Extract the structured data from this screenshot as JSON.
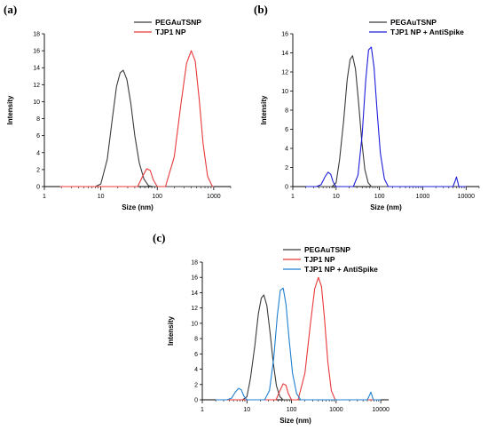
{
  "chart_data": [
    {
      "type": "line",
      "panel": "(a)",
      "xlabel": "Size (nm)",
      "ylabel": "Intensity",
      "xscale": "log",
      "xlim": [
        1,
        2000
      ],
      "ylim": [
        0,
        18
      ],
      "x_ticks": [
        1,
        10,
        100,
        1000
      ],
      "x_tick_labels": [
        "1",
        "10",
        "100",
        "1000"
      ],
      "y_ticks": [
        0,
        2,
        4,
        6,
        8,
        10,
        12,
        14,
        16,
        18
      ],
      "legend_position": "top-right",
      "series": [
        {
          "name": "PEGAuTSNP",
          "color": "#3a3a3a",
          "x": [
            1.9,
            5,
            8,
            10,
            13,
            16,
            19,
            22,
            25,
            29,
            34,
            40,
            48,
            58,
            70,
            85,
            110,
            1000
          ],
          "y": [
            0,
            0,
            0,
            0.3,
            3.2,
            8.0,
            11.8,
            13.4,
            13.7,
            12.6,
            9.8,
            6.0,
            2.8,
            0.9,
            0.1,
            0,
            0,
            0
          ]
        },
        {
          "name": "TJP1 NP",
          "color": "#e8383a",
          "x": [
            1.9,
            30,
            45,
            55,
            65,
            75,
            85,
            100,
            140,
            200,
            260,
            330,
            400,
            470,
            550,
            650,
            780,
            950,
            1000
          ],
          "y": [
            0,
            0,
            0,
            1.2,
            2.1,
            1.9,
            0.8,
            0,
            0,
            3.5,
            9.5,
            14.5,
            16.0,
            14.8,
            10.5,
            5.0,
            1.2,
            0,
            0
          ]
        }
      ]
    },
    {
      "type": "line",
      "panel": "(b)",
      "xlabel": "Size (nm)",
      "ylabel": "Intensity",
      "xscale": "log",
      "xlim": [
        1,
        20000
      ],
      "ylim": [
        0,
        16
      ],
      "x_ticks": [
        1,
        10,
        100,
        1000,
        10000
      ],
      "x_tick_labels": [
        "1",
        "10",
        "100",
        "1000",
        "10000"
      ],
      "y_ticks": [
        0,
        2,
        4,
        6,
        8,
        10,
        12,
        14,
        16
      ],
      "legend_position": "top-right",
      "series": [
        {
          "name": "PEGAuTSNP",
          "color": "#3a3a3a",
          "x": [
            2,
            8,
            10,
            12,
            15,
            18,
            21,
            24,
            28,
            33,
            39,
            46,
            55,
            65,
            80,
            10000
          ],
          "y": [
            0,
            0,
            0.4,
            2.8,
            7.0,
            11.2,
            13.3,
            13.7,
            12.3,
            8.8,
            4.8,
            1.8,
            0.4,
            0,
            0,
            0
          ]
        },
        {
          "name": "TJP1 NP + AntiSpike",
          "color": "#1d1ddb",
          "x": [
            2,
            3.5,
            4.5,
            5.5,
            6.5,
            7.5,
            8.5,
            10,
            25,
            32,
            40,
            48,
            56,
            65,
            75,
            88,
            105,
            130,
            160,
            5000,
            5600,
            6000,
            6400,
            6800,
            10000
          ],
          "y": [
            0,
            0,
            0.2,
            1.0,
            1.5,
            1.3,
            0.5,
            0,
            0,
            1.2,
            5.5,
            11.0,
            14.3,
            14.6,
            12.5,
            8.0,
            3.5,
            0.8,
            0,
            0,
            0.6,
            1.0,
            0.5,
            0,
            0
          ]
        }
      ]
    },
    {
      "type": "line",
      "panel": "(c)",
      "xlabel": "Size (nm)",
      "ylabel": "Intensity",
      "xscale": "log",
      "xlim": [
        1,
        15000
      ],
      "ylim": [
        0,
        18
      ],
      "x_ticks": [
        1,
        10,
        100,
        1000,
        10000
      ],
      "x_tick_labels": [
        "1",
        "10",
        "100",
        "1000",
        "10000"
      ],
      "y_ticks": [
        0,
        2,
        4,
        6,
        8,
        10,
        12,
        14,
        16,
        18
      ],
      "legend_position": "top-right",
      "series": [
        {
          "name": "PEGAuTSNP",
          "color": "#3a3a3a",
          "x": [
            2,
            8,
            10,
            12,
            15,
            18,
            21,
            24,
            28,
            33,
            39,
            46,
            55,
            65,
            80,
            10000
          ],
          "y": [
            0,
            0,
            0.4,
            2.8,
            7.0,
            11.2,
            13.3,
            13.7,
            12.3,
            8.8,
            4.8,
            1.8,
            0.4,
            0,
            0,
            0
          ]
        },
        {
          "name": "TJP1 NP",
          "color": "#e8383a",
          "x": [
            2,
            30,
            45,
            55,
            65,
            75,
            85,
            100,
            140,
            200,
            260,
            330,
            400,
            470,
            550,
            650,
            780,
            950,
            10000
          ],
          "y": [
            0,
            0,
            0,
            1.2,
            2.1,
            1.9,
            0.8,
            0,
            0,
            3.5,
            9.5,
            14.5,
            16.0,
            14.8,
            10.5,
            5.0,
            1.2,
            0,
            0
          ]
        },
        {
          "name": "TJP1 NP + AntiSpike",
          "color": "#1f7fd0",
          "x": [
            2,
            3.5,
            4.5,
            5.5,
            6.5,
            7.5,
            8.5,
            10,
            25,
            32,
            40,
            48,
            56,
            65,
            75,
            88,
            105,
            130,
            160,
            5000,
            5600,
            6000,
            6400,
            6800,
            10000
          ],
          "y": [
            0,
            0,
            0.2,
            1.0,
            1.5,
            1.3,
            0.5,
            0,
            0,
            1.2,
            5.5,
            11.0,
            14.3,
            14.6,
            12.5,
            8.0,
            3.5,
            0.8,
            0,
            0,
            0.6,
            1.0,
            0.5,
            0,
            0
          ]
        }
      ]
    }
  ]
}
